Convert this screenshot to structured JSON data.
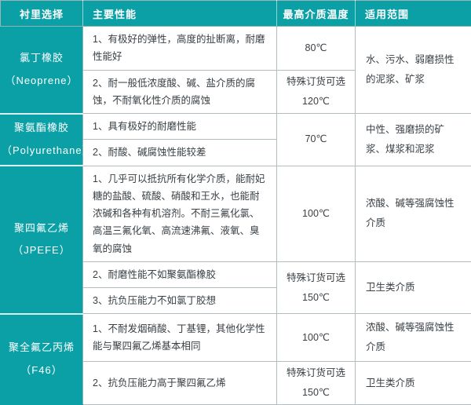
{
  "table": {
    "accent_color": "#0ba0a6",
    "dashed_divider_color": "#c9cdcf",
    "header": [
      "衬里选择",
      "主要性能",
      "最高介质温度",
      "适用范围"
    ],
    "groups": [
      {
        "name": "氯丁橡胶",
        "name_en": "（Neoprene）",
        "application": "水、污水、弱磨损性的泥浆、矿浆",
        "rows": [
          {
            "performance": "1、有极好的弹性，高度的扯断离，耐磨性能好",
            "temperature": "80℃"
          },
          {
            "performance": "2、耐一般低浓度酸、碱、盐介质的腐蚀，不耐氧化性介质的腐蚀",
            "temperature": "特殊订货可选\n120℃"
          }
        ]
      },
      {
        "name": "聚氨酯橡胶",
        "name_en": "（Polyurethane）",
        "temperature": "70℃",
        "application": "中性、强磨损的矿浆、煤浆和泥浆",
        "rows": [
          {
            "performance": "1、具有极好的耐磨性能"
          },
          {
            "performance": "2、耐酸、碱腐蚀性能较差"
          }
        ]
      },
      {
        "name": "聚四氟乙烯",
        "name_en": "（JPEFE）",
        "rows": [
          {
            "performance": "1、几乎可以抵抗所有化学介质，能耐妃糖的盐酸、硫酸、硝酸和王水，也能耐浓碱和各种有机溶剂。不耐三氟化氯、高温三氟化氧、高流速沸氟、液氧、臭氧的腐蚀",
            "temperature": "100℃",
            "application": "浓酸、碱等强腐蚀性介质"
          },
          {
            "performance": "2、耐磨性能不如聚氨酯橡胶",
            "temperature": "特殊订货可选\n150℃",
            "application": "卫生类介质"
          },
          {
            "performance": "3、抗负压能力不如氯丁胶想"
          }
        ]
      },
      {
        "name": "聚全氟乙丙烯",
        "name_en": "（F46）",
        "rows": [
          {
            "performance": "1、不耐发烟硝酸、丁基锂，其他化学性能与聚四氟乙烯基本相同",
            "temperature": "100℃",
            "application": "浓酸、碱等强腐蚀性介质"
          },
          {
            "performance": "2、抗负压能力高于聚四氟乙烯",
            "temperature": "特殊订货可选\n150℃",
            "application": "卫生类介质"
          }
        ]
      }
    ]
  }
}
